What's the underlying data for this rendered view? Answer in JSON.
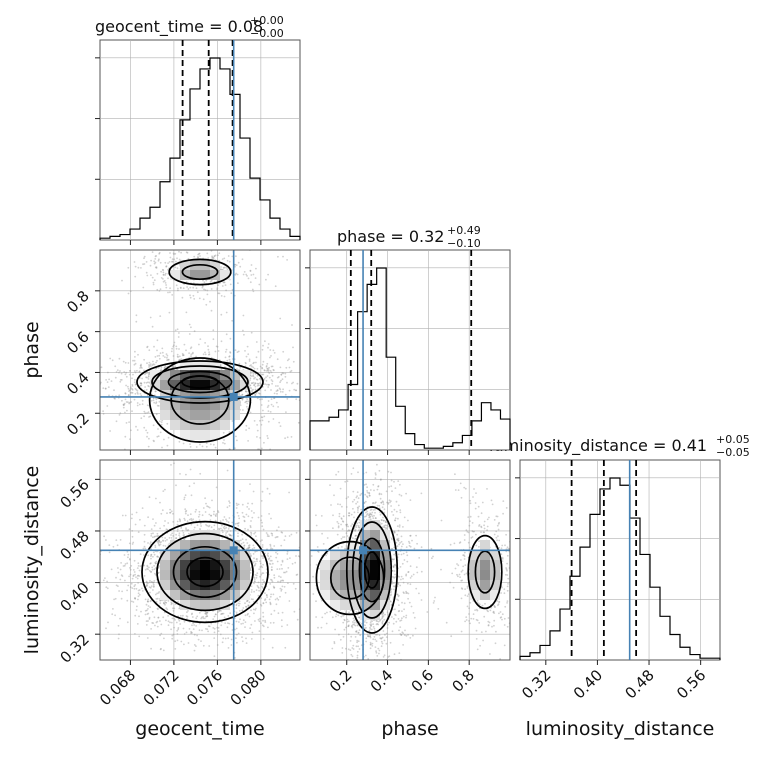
{
  "chart_data": {
    "type": "corner",
    "parameters": [
      {
        "name": "geocent_time",
        "label": "geocent_time",
        "range": [
          0.0652,
          0.0836
        ],
        "ticks": [
          "0.068",
          "0.072",
          "0.076",
          "0.080"
        ],
        "tick_values": [
          0.068,
          0.072,
          0.076,
          0.08
        ],
        "title_main": "geocent_time = 0.08",
        "title_plus": "+0.00",
        "title_minus": "−0.00",
        "quantiles": [
          0.0728,
          0.0752,
          0.0774
        ],
        "truth": 0.0775
      },
      {
        "name": "phase",
        "label": "phase",
        "range": [
          0.02,
          1.0
        ],
        "ticks": [
          "0.2",
          "0.4",
          "0.6",
          "0.8"
        ],
        "tick_values": [
          0.2,
          0.4,
          0.6,
          0.8
        ],
        "title_main": "phase = 0.32",
        "title_plus": "+0.49",
        "title_minus": "−0.10",
        "quantiles": [
          0.22,
          0.32,
          0.81
        ],
        "truth": 0.28
      },
      {
        "name": "luminosity_distance",
        "label": "luminosity_distance",
        "range": [
          0.28,
          0.59
        ],
        "ticks": [
          "0.32",
          "0.40",
          "0.48",
          "0.56"
        ],
        "tick_values": [
          0.32,
          0.4,
          0.48,
          0.56
        ],
        "title_main": "luminosity_distance = 0.41",
        "title_plus": "+0.05",
        "title_minus": "−0.05",
        "quantiles": [
          0.36,
          0.41,
          0.46
        ],
        "truth": 0.45
      }
    ],
    "histograms": {
      "geocent_time": [
        0.01,
        0.02,
        0.03,
        0.06,
        0.12,
        0.18,
        0.32,
        0.45,
        0.66,
        0.83,
        0.94,
        1.0,
        0.94,
        0.8,
        0.56,
        0.34,
        0.22,
        0.12,
        0.06,
        0.02
      ],
      "phase": [
        0.16,
        0.16,
        0.18,
        0.22,
        0.36,
        0.76,
        0.91,
        1.0,
        0.51,
        0.24,
        0.09,
        0.03,
        0.01,
        0.01,
        0.02,
        0.04,
        0.08,
        0.16,
        0.26,
        0.22,
        0.17
      ],
      "luminosity_distance": [
        0.02,
        0.04,
        0.08,
        0.16,
        0.28,
        0.46,
        0.62,
        0.8,
        0.94,
        1.0,
        0.96,
        0.78,
        0.58,
        0.4,
        0.24,
        0.14,
        0.07,
        0.03,
        0.01,
        0.01
      ]
    },
    "grid": true,
    "colors": {
      "truth": "#4682b4",
      "contour": "#000000",
      "samples": "#9a9a9a",
      "grid": "#b0b0b0"
    }
  }
}
